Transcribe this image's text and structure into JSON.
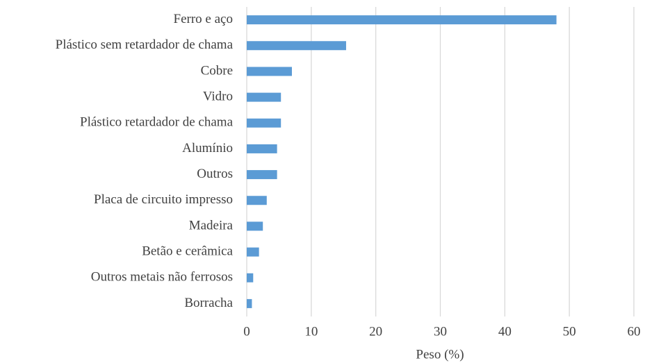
{
  "chart_data": {
    "type": "barh",
    "categories": [
      "Ferro e aço",
      "Plástico sem retardador de chama",
      "Cobre",
      "Vidro",
      "Plástico retardador de chama",
      "Alumínio",
      "Outros",
      "Placa de circuito impresso",
      "Madeira",
      "Betão e cerâmica",
      "Outros metais não ferrosos",
      "Borracha"
    ],
    "values": [
      48,
      15.4,
      7,
      5.3,
      5.3,
      4.7,
      4.7,
      3.1,
      2.5,
      1.9,
      1.0,
      0.8
    ],
    "color": "#5b9bd5",
    "xlabel": "Peso (%)",
    "xlim": [
      0,
      60
    ],
    "xticks": [
      0,
      10,
      20,
      30,
      40,
      50,
      60
    ],
    "grid": true
  }
}
